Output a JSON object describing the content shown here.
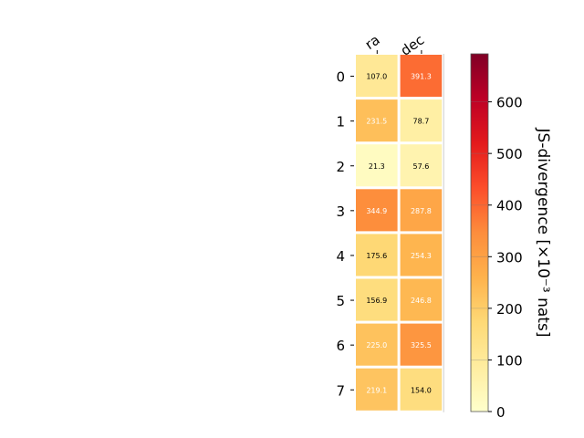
{
  "chart_data": {
    "type": "heatmap",
    "title": "",
    "x_categories": [
      "ra",
      "dec"
    ],
    "y_categories": [
      "0",
      "1",
      "2",
      "3",
      "4",
      "5",
      "6",
      "7"
    ],
    "values": [
      [
        107.0,
        391.3
      ],
      [
        231.5,
        78.7
      ],
      [
        21.3,
        57.6
      ],
      [
        344.9,
        287.8
      ],
      [
        175.6,
        254.3
      ],
      [
        156.9,
        246.8
      ],
      [
        225.0,
        325.5
      ],
      [
        219.1,
        154.0
      ]
    ],
    "value_labels": [
      [
        "107.0",
        "391.3"
      ],
      [
        "231.5",
        "78.7"
      ],
      [
        "21.3",
        "57.6"
      ],
      [
        "344.9",
        "287.8"
      ],
      [
        "175.6",
        "254.3"
      ],
      [
        "156.9",
        "246.8"
      ],
      [
        "225.0",
        "325.5"
      ],
      [
        "219.1",
        "154.0"
      ]
    ],
    "colorbar": {
      "label": "JS-divergence [×10⁻³ nats]",
      "min": 0,
      "max": 693,
      "ticks": [
        0,
        100,
        200,
        300,
        400,
        500,
        600
      ],
      "colormap": "YlOrRd"
    },
    "grid": false,
    "legend": "none"
  }
}
